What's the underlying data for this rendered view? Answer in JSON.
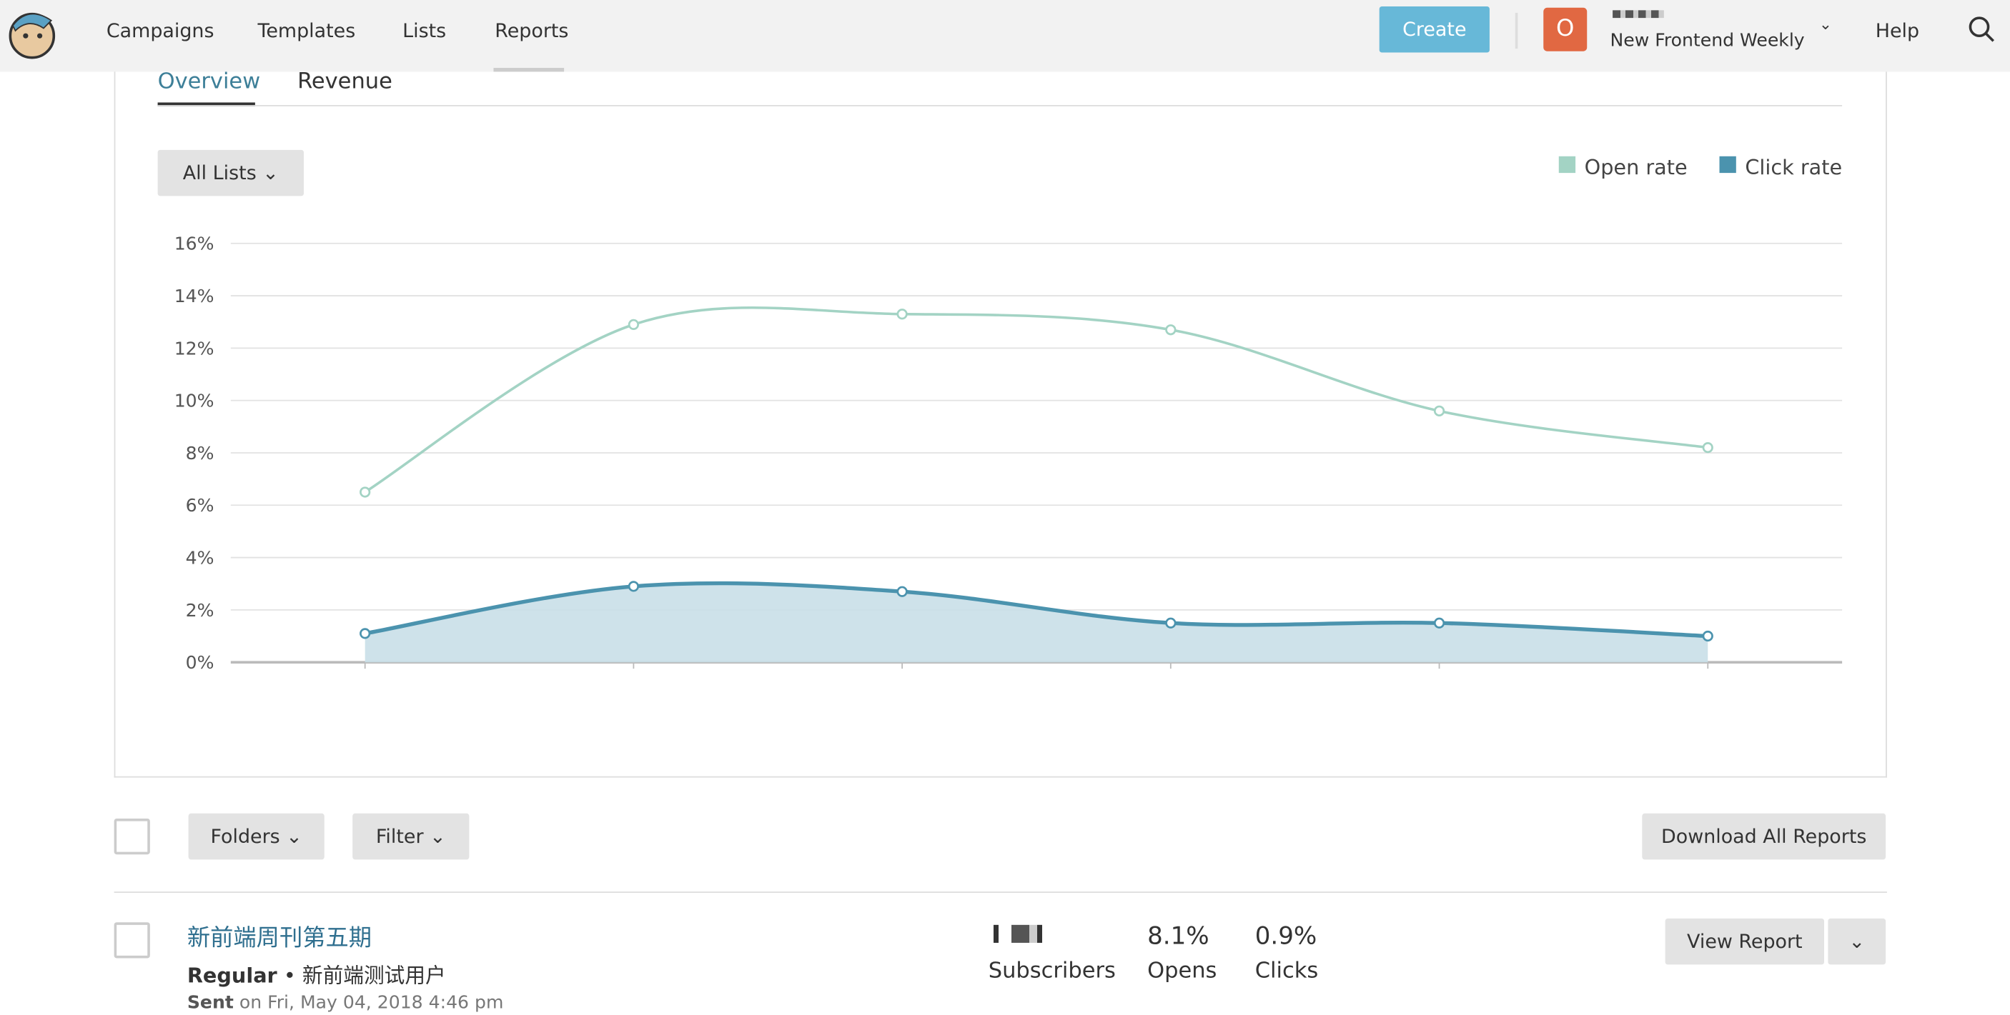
{
  "nav": {
    "items": [
      "Campaigns",
      "Templates",
      "Lists",
      "Reports"
    ],
    "create": "Create",
    "avatar": "O",
    "account": "New Frontend Weekly",
    "help": "Help"
  },
  "tabs": [
    "Overview",
    "Revenue"
  ],
  "filter": "All Lists",
  "chart_data": {
    "type": "line",
    "categories": [
      null,
      null,
      null,
      null,
      null,
      null
    ],
    "series": [
      {
        "name": "Open rate",
        "color": "#a3d3c4",
        "values": [
          6.5,
          12.9,
          13.3,
          12.7,
          9.6,
          8.2
        ]
      },
      {
        "name": "Click rate",
        "color": "#4b93ae",
        "values": [
          1.1,
          2.9,
          2.7,
          1.5,
          1.5,
          1.0
        ],
        "fill": "#c9dfe8"
      }
    ],
    "ylim": [
      0,
      16
    ],
    "yticks": [
      {
        "value": 0,
        "label": "0%"
      },
      {
        "value": 2,
        "label": "2%"
      },
      {
        "value": 4,
        "label": "4%"
      },
      {
        "value": 6,
        "label": "6%"
      },
      {
        "value": 8,
        "label": "8%"
      },
      {
        "value": 10,
        "label": "10%"
      },
      {
        "value": 12,
        "label": "12%"
      },
      {
        "value": 14,
        "label": "14%"
      },
      {
        "value": 16,
        "label": "16%"
      }
    ],
    "grid": true,
    "legend": "top-right"
  },
  "toolbar": {
    "folders": "Folders",
    "filter": "Filter",
    "download": "Download All Reports"
  },
  "campaigns": [
    {
      "title": "新前端周刊第五期",
      "kind": "Regular",
      "list": "新前端测试用户",
      "subscribers_label": "Subscribers",
      "opens": "8.1%",
      "opens_label": "Opens",
      "clicks": "0.9%",
      "clicks_label": "Clicks",
      "action": "View Report",
      "sent": "Sent",
      "sent_on": "on Fri, May 04, 2018 4:46 pm"
    }
  ]
}
